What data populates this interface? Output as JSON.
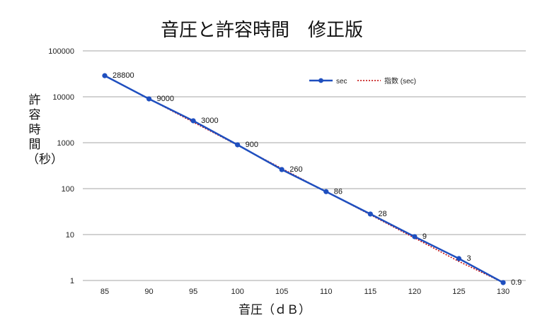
{
  "chart_data": {
    "type": "line",
    "title": "音圧と許容時間　修正版",
    "xlabel": "音圧（ｄＢ）",
    "ylabel": "許容時間（秒）",
    "y_scale": "log",
    "ylim": [
      1,
      100000
    ],
    "grid": "horizontal",
    "legend_position": "top-right",
    "x": [
      85,
      90,
      95,
      100,
      105,
      110,
      115,
      120,
      125,
      130
    ],
    "x_tick_labels": [
      "85",
      "90",
      "95",
      "100",
      "105",
      "110",
      "115",
      "120",
      "125",
      "130"
    ],
    "y_tick_labels": [
      "1",
      "10",
      "100",
      "1000",
      "10000",
      "100000"
    ],
    "series": [
      {
        "name": "sec",
        "color": "#1f4fbf",
        "values": [
          28800,
          9000,
          3000,
          900,
          260,
          86,
          28,
          9,
          3,
          0.9
        ],
        "data_labels": [
          "28800",
          "9000",
          "3000",
          "900",
          "260",
          "86",
          "28",
          "9",
          "3",
          "0.9"
        ]
      },
      {
        "name": "指数 (sec)",
        "style": "dotted",
        "color": "#c00000",
        "values": [
          28800,
          9000,
          2800,
          880,
          275,
          86,
          27,
          8.4,
          2.6,
          0.9
        ]
      }
    ]
  }
}
